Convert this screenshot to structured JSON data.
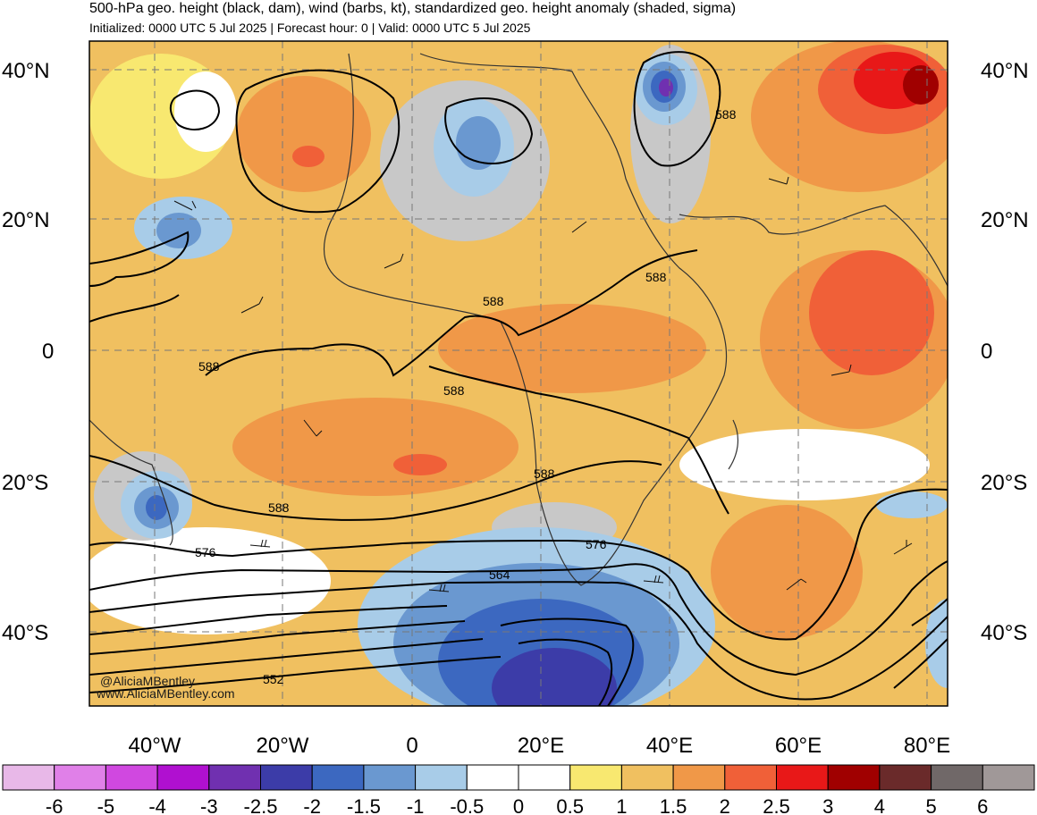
{
  "header": {
    "title": "500-hPa geo. height (black, dam), wind (barbs, kt), standardized geo. height anomaly (shaded, sigma)",
    "subtitle": "Initialized: 0000 UTC 5 Jul 2025 | Forecast hour: 0 | Valid: 0000 UTC 5 Jul 2025"
  },
  "map": {
    "lat_labels": [
      "40°N",
      "20°N",
      "0",
      "20°S",
      "40°S"
    ],
    "lon_labels": [
      "40°W",
      "20°W",
      "0",
      "20°E",
      "40°E",
      "60°E",
      "80°E"
    ],
    "lon_range": [
      -50,
      82
    ],
    "lat_range": [
      -50,
      44
    ],
    "contour_labels": [
      "588",
      "588",
      "588",
      "588",
      "588",
      "588",
      "588",
      "576",
      "576",
      "564",
      "552"
    ],
    "colors": {
      "ocean_bg": "#f0c060",
      "contour": "#000000",
      "coastline": "#333333"
    }
  },
  "colorbar": {
    "tick_labels": [
      "-6",
      "-5",
      "-4",
      "-3",
      "-2.5",
      "-2",
      "-1.5",
      "-1",
      "-0.5",
      "0",
      "0.5",
      "1",
      "1.5",
      "2",
      "2.5",
      "3",
      "4",
      "5",
      "6"
    ],
    "colors": [
      "#e8b8e8",
      "#e080e8",
      "#d048e0",
      "#b010d0",
      "#7030b0",
      "#3c3ca8",
      "#3c68c0",
      "#6a98d0",
      "#a8cce8",
      "#ffffff",
      "#ffffff",
      "#f8e870",
      "#f0c060",
      "#f09848",
      "#f06038",
      "#e81818",
      "#a00000",
      "#6a2a2a",
      "#706868",
      "#a09898"
    ]
  },
  "watermark": {
    "handle": "@AliciaMBentley",
    "site": "www.AliciaMBentley.com"
  }
}
